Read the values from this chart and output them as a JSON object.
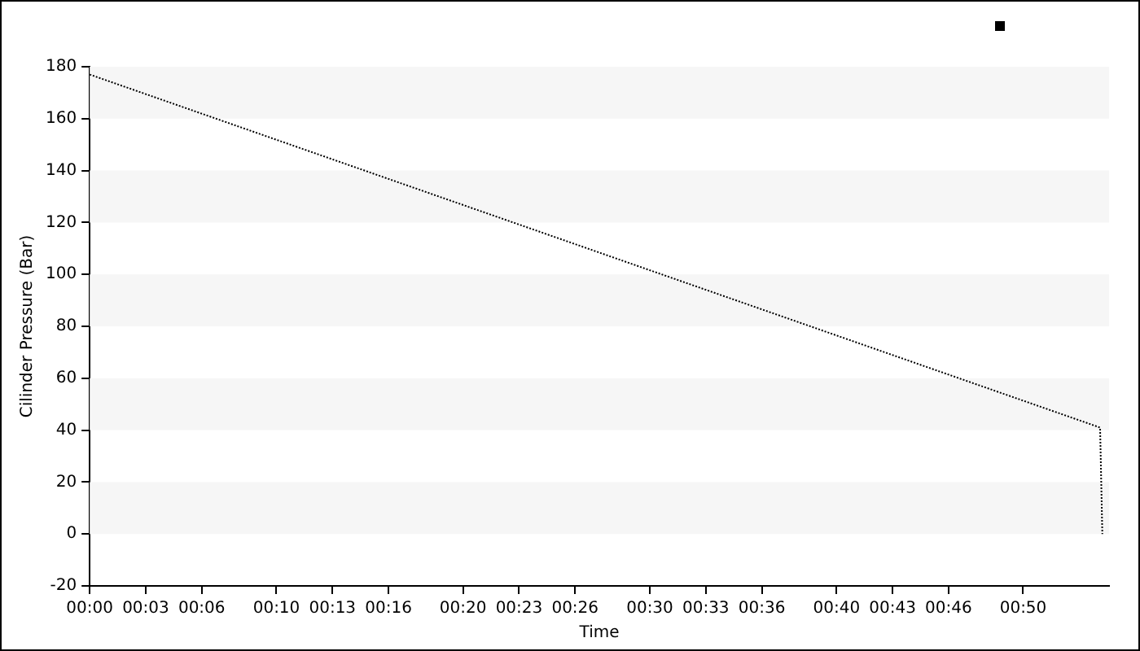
{
  "chart_data": {
    "type": "line",
    "xlabel": "Time",
    "ylabel": "Cilinder Pressure (Bar)",
    "x": [
      0,
      0.902,
      0.904
    ],
    "series": [
      {
        "color": "#000000",
        "values": [
          177,
          41,
          0
        ]
      }
    ],
    "xlim": [
      0,
      0.91
    ],
    "xticks": [
      {
        "value": 0,
        "label": "00:00"
      },
      {
        "value": 0.05,
        "label": "00:03"
      },
      {
        "value": 0.1,
        "label": "00:06"
      },
      {
        "value": 0.1667,
        "label": "00:10"
      },
      {
        "value": 0.2167,
        "label": "00:13"
      },
      {
        "value": 0.2667,
        "label": "00:16"
      },
      {
        "value": 0.3333,
        "label": "00:20"
      },
      {
        "value": 0.3833,
        "label": "00:23"
      },
      {
        "value": 0.4333,
        "label": "00:26"
      },
      {
        "value": 0.5,
        "label": "00:30"
      },
      {
        "value": 0.55,
        "label": "00:33"
      },
      {
        "value": 0.6,
        "label": "00:36"
      },
      {
        "value": 0.6667,
        "label": "00:40"
      },
      {
        "value": 0.7167,
        "label": "00:43"
      },
      {
        "value": 0.7667,
        "label": "00:46"
      },
      {
        "value": 0.8333,
        "label": "00:50"
      }
    ],
    "ylim": [
      -20,
      180
    ],
    "yticks": [
      -20,
      0,
      20,
      40,
      60,
      80,
      100,
      120,
      140,
      160,
      180
    ],
    "bands": [
      {
        "axis": "y",
        "from": 0,
        "to": 20,
        "color": "#f6f6f6"
      },
      {
        "axis": "y",
        "from": 40,
        "to": 60,
        "color": "#f6f6f6"
      },
      {
        "axis": "y",
        "from": 80,
        "to": 100,
        "color": "#f6f6f6"
      },
      {
        "axis": "y",
        "from": 120,
        "to": 140,
        "color": "#f6f6f6"
      },
      {
        "axis": "y",
        "from": 160,
        "to": 180,
        "color": "#f6f6f6"
      }
    ],
    "marker": "none",
    "line_style": "dotted"
  }
}
